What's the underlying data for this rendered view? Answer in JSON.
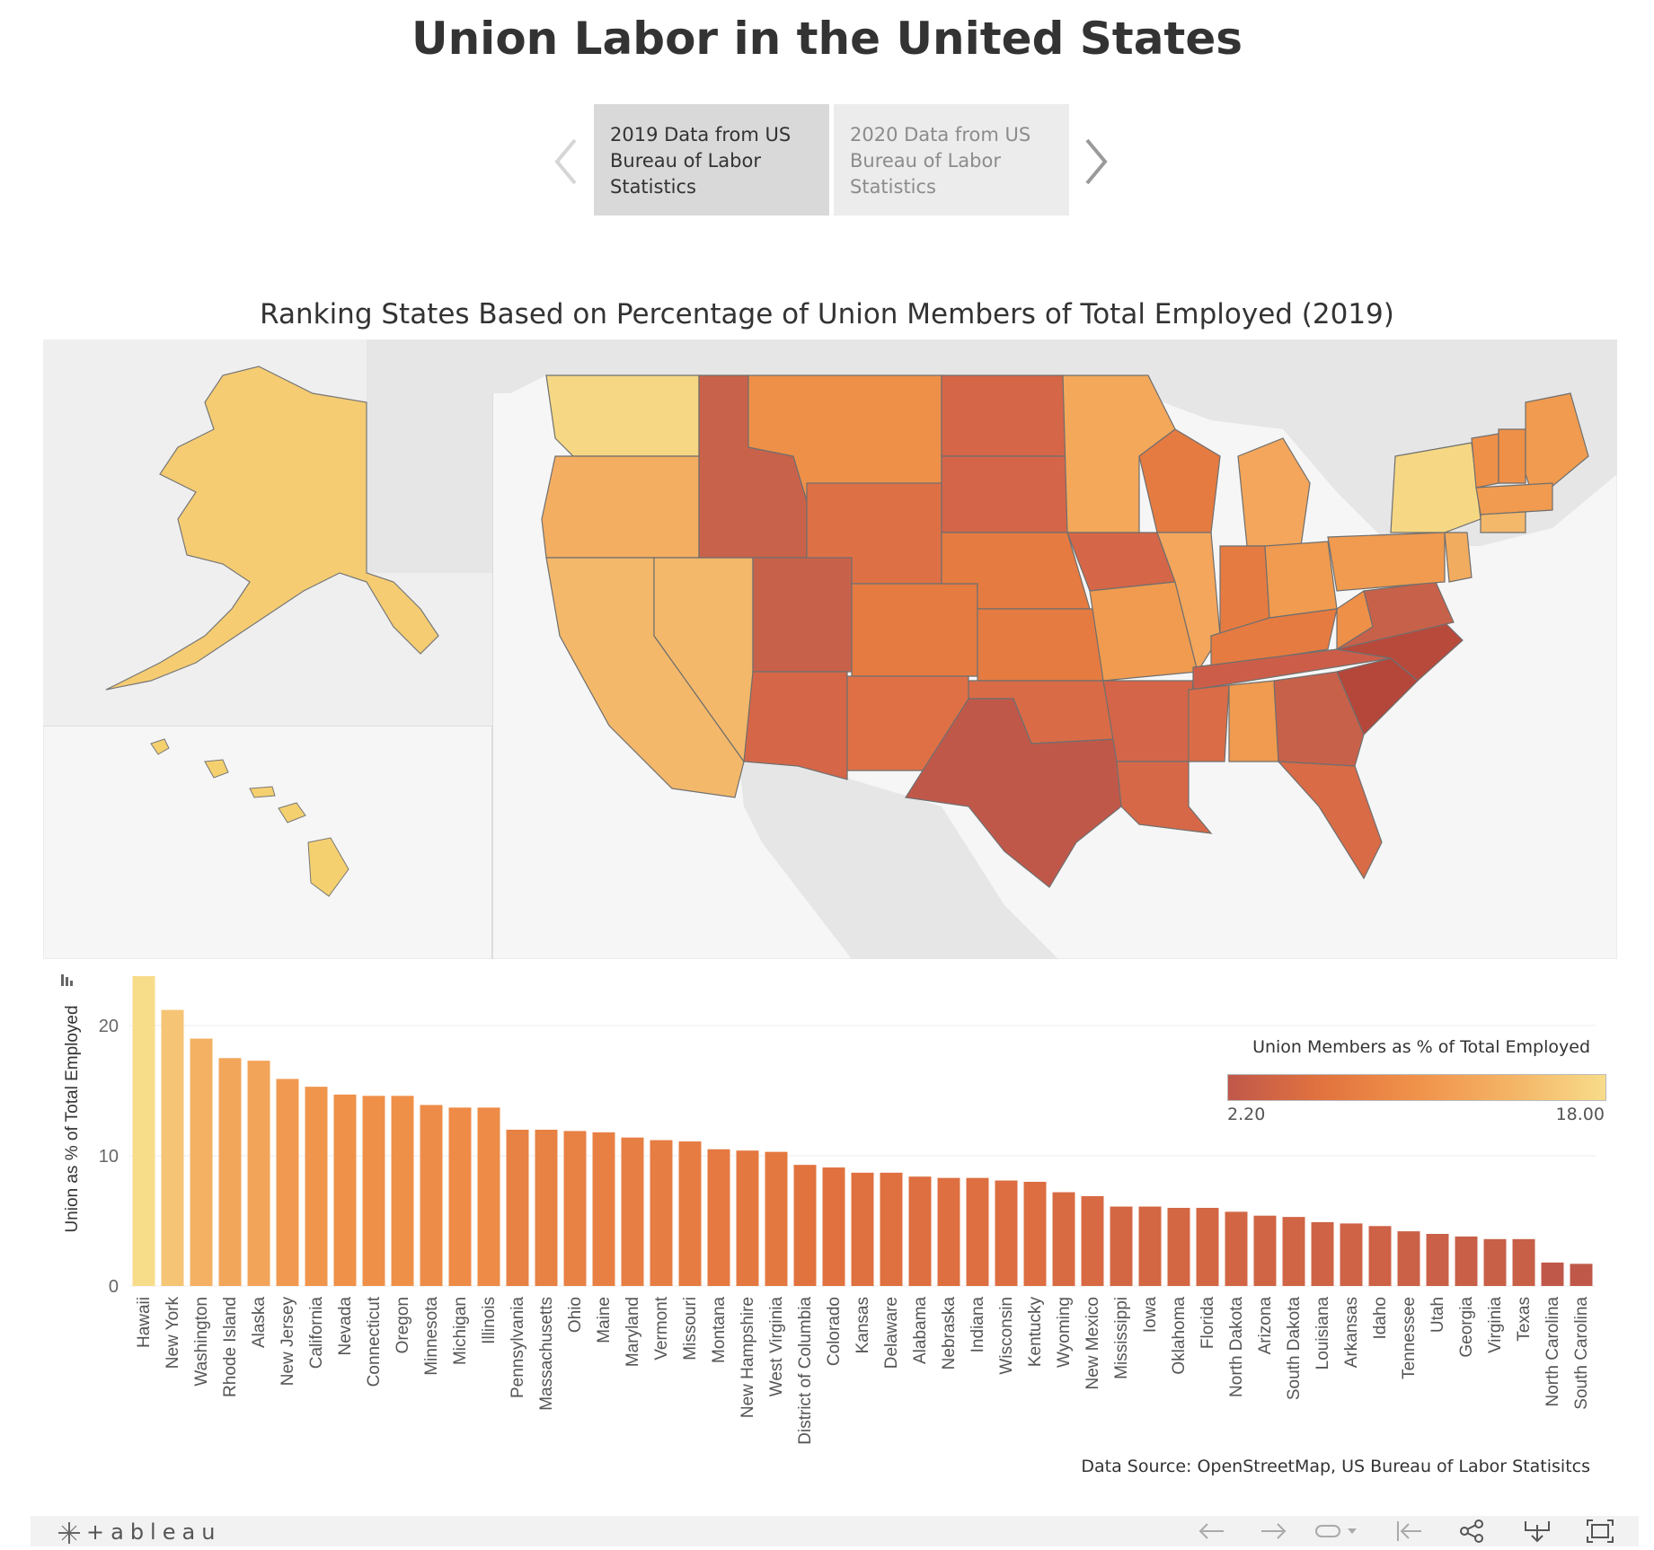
{
  "title": "Union Labor in the United States",
  "story": {
    "points": [
      {
        "line1": "2019 Data from US",
        "line2": "Bureau of Labor",
        "line3": "Statistics"
      },
      {
        "line1": "2020 Data from US",
        "line2": "Bureau of Labor",
        "line3": "Statistics"
      }
    ]
  },
  "subtitle": "Ranking States Based on Percentage of Union Members of Total Employed (2019)",
  "legend": {
    "title": "Union Members as % of Total Employed",
    "min": "2.20",
    "max": "18.00"
  },
  "source": "Data Source: OpenStreetMap, US Bureau of Labor Statisitcs",
  "toolbar": {
    "logo": "+ableau"
  },
  "colors": {
    "low": "#b5463a",
    "mid": "#ec8030",
    "high": "#f7dc8a"
  },
  "chart_data": {
    "type": "bar",
    "ylabel": "Union as % of Total Employed",
    "xlabel": "",
    "ylim": [
      0,
      24
    ],
    "yticks": [
      0,
      10,
      20
    ],
    "grid": true,
    "categories": [
      "Hawaii",
      "New York",
      "Washington",
      "Rhode Island",
      "Alaska",
      "New Jersey",
      "California",
      "Nevada",
      "Connecticut",
      "Oregon",
      "Minnesota",
      "Michigan",
      "Illinois",
      "Pennsylvania",
      "Massachusetts",
      "Ohio",
      "Maine",
      "Maryland",
      "Vermont",
      "Missouri",
      "Montana",
      "New Hampshire",
      "West Virginia",
      "District of Columbia",
      "Colorado",
      "Kansas",
      "Delaware",
      "Alabama",
      "Nebraska",
      "Indiana",
      "Wisconsin",
      "Kentucky",
      "Wyoming",
      "New Mexico",
      "Mississippi",
      "Iowa",
      "Oklahoma",
      "Florida",
      "North Dakota",
      "Arizona",
      "South Dakota",
      "Louisiana",
      "Arkansas",
      "Idaho",
      "Tennessee",
      "Utah",
      "Georgia",
      "Virginia",
      "Texas",
      "North Carolina",
      "South Carolina"
    ],
    "values": [
      23.8,
      21.2,
      19.0,
      17.5,
      17.3,
      15.9,
      15.3,
      14.7,
      14.6,
      14.6,
      13.9,
      13.7,
      13.7,
      12.0,
      12.0,
      11.9,
      11.8,
      11.4,
      11.2,
      11.1,
      10.5,
      10.4,
      10.3,
      9.3,
      9.1,
      8.7,
      8.7,
      8.4,
      8.3,
      8.3,
      8.1,
      8.0,
      7.2,
      6.9,
      6.1,
      6.1,
      6.0,
      6.0,
      5.7,
      5.4,
      5.3,
      4.9,
      4.8,
      4.6,
      4.2,
      4.0,
      3.8,
      3.6,
      3.6,
      1.8,
      1.7
    ]
  }
}
